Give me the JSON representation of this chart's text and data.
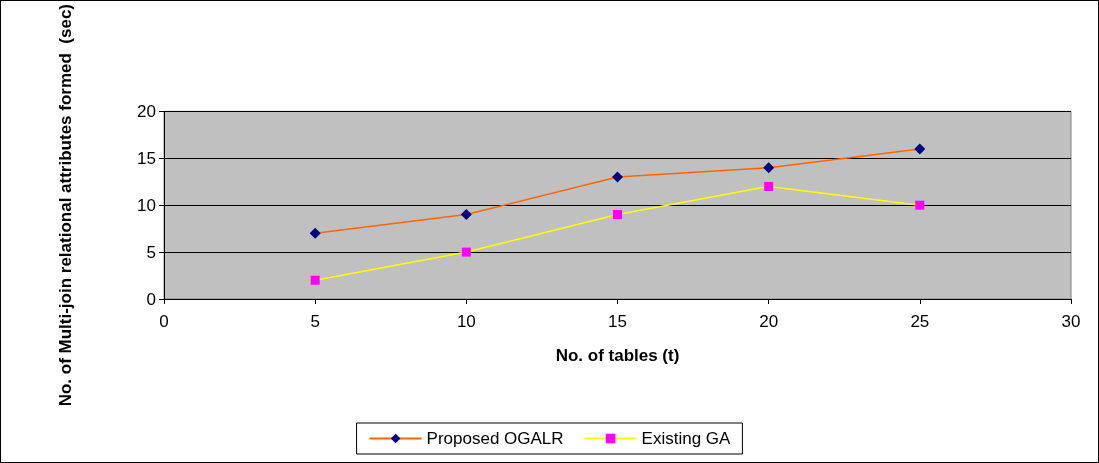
{
  "chart_data": {
    "type": "line",
    "xlabel": "No. of tables (t)",
    "ylabel": "No. of Multi-join relational attributes formed  (sec)",
    "x": [
      5,
      10,
      15,
      20,
      25
    ],
    "series": [
      {
        "name": "Proposed OGALR",
        "color": "#ff6600",
        "colors": [
          "#000080",
          "#000080",
          "#000080",
          "#000080",
          "#000080"
        ],
        "marker": "diamond",
        "values": [
          7,
          9,
          13,
          14,
          16
        ]
      },
      {
        "name": "Existing GA",
        "color": "#ffff00",
        "colors": [
          "#ff00ff",
          "#ff00ff",
          "#ff00ff",
          "#ff00ff",
          "#ff00ff"
        ],
        "marker": "square",
        "values": [
          2,
          5,
          9,
          12,
          10
        ]
      }
    ],
    "xlim": [
      0,
      30
    ],
    "xticks": [
      0,
      5,
      10,
      15,
      20,
      25,
      30
    ],
    "ylim": [
      0,
      20
    ],
    "yticks": [
      0,
      5,
      10,
      15,
      20
    ],
    "grid": "y",
    "legend": "bottom"
  }
}
